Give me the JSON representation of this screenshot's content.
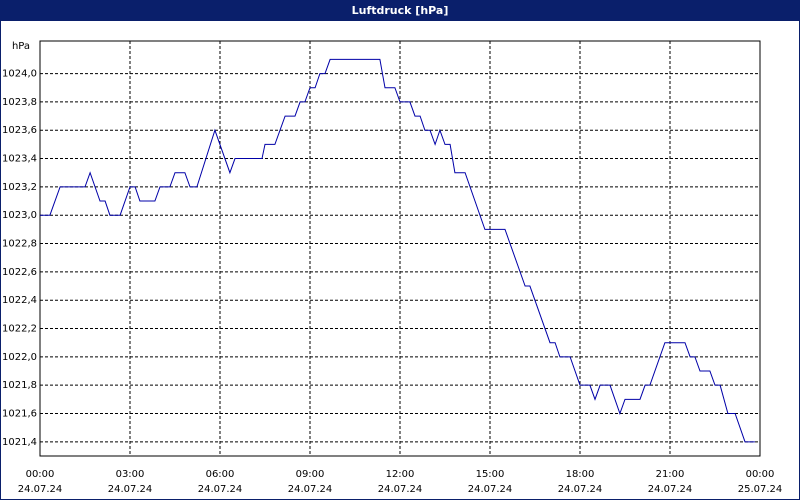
{
  "chart_data": {
    "type": "line",
    "title": "Luftdruck [hPa]",
    "y_unit": "hPa",
    "x": [
      0,
      0.33,
      0.67,
      1.5,
      1.67,
      2,
      2.17,
      2.33,
      2.67,
      3,
      3.17,
      3.33,
      3.83,
      4,
      4.33,
      4.5,
      4.83,
      5,
      5.23,
      5.83,
      6.33,
      6.5,
      7.4,
      7.5,
      7.83,
      8.17,
      8.5,
      8.67,
      8.83,
      9,
      9.17,
      9.33,
      9.5,
      9.67,
      11.33,
      11.5,
      11.83,
      12,
      12.33,
      12.5,
      12.67,
      12.83,
      13,
      13.17,
      13.33,
      13.5,
      13.67,
      13.83,
      14.17,
      14.83,
      15.5,
      16.17,
      16.33,
      17,
      17.17,
      17.33,
      17.67,
      18,
      18.33,
      18.5,
      18.67,
      19,
      19.33,
      19.5,
      20,
      20.17,
      20.33,
      20.83,
      21.5,
      21.67,
      21.83,
      22,
      22.33,
      22.5,
      22.67,
      22.93,
      23.17,
      23.5,
      23.83
    ],
    "series": [
      {
        "name": "Luftdruck",
        "color": "#0000a8",
        "values": [
          1023.0,
          1023.0,
          1023.2,
          1023.2,
          1023.3,
          1023.1,
          1023.1,
          1023.0,
          1023.0,
          1023.2,
          1023.2,
          1023.1,
          1023.1,
          1023.2,
          1023.2,
          1023.3,
          1023.3,
          1023.2,
          1023.2,
          1023.6,
          1023.3,
          1023.4,
          1023.4,
          1023.5,
          1023.5,
          1023.7,
          1023.7,
          1023.8,
          1023.8,
          1023.9,
          1023.9,
          1024.0,
          1024.0,
          1024.1,
          1024.1,
          1023.9,
          1023.9,
          1023.8,
          1023.8,
          1023.7,
          1023.7,
          1023.6,
          1023.6,
          1023.5,
          1023.6,
          1023.5,
          1023.5,
          1023.3,
          1023.3,
          1022.9,
          1022.9,
          1022.5,
          1022.5,
          1022.1,
          1022.1,
          1022.0,
          1022.0,
          1021.8,
          1021.8,
          1021.7,
          1021.8,
          1021.8,
          1021.6,
          1021.7,
          1021.7,
          1021.8,
          1021.8,
          1022.1,
          1022.1,
          1022.0,
          1022.0,
          1021.9,
          1021.9,
          1021.8,
          1021.8,
          1021.6,
          1021.6,
          1021.4,
          1021.4
        ]
      }
    ],
    "xlim": [
      0,
      24
    ],
    "ylim": [
      1021.3,
      1024.23
    ],
    "xticks": [
      {
        "value": 0,
        "label": "00:00"
      },
      {
        "value": 3,
        "label": "03:00"
      },
      {
        "value": 6,
        "label": "06:00"
      },
      {
        "value": 9,
        "label": "09:00"
      },
      {
        "value": 12,
        "label": "12:00"
      },
      {
        "value": 15,
        "label": "15:00"
      },
      {
        "value": 18,
        "label": "18:00"
      },
      {
        "value": 21,
        "label": "21:00"
      },
      {
        "value": 24,
        "label": "00:00"
      }
    ],
    "xtick_dates": [
      "24.07.24",
      "24.07.24",
      "24.07.24",
      "24.07.24",
      "24.07.24",
      "24.07.24",
      "24.07.24",
      "24.07.24",
      "25.07.24"
    ],
    "yticks": [
      {
        "value": 1021.4,
        "label": "1021,4"
      },
      {
        "value": 1021.6,
        "label": "1021,6"
      },
      {
        "value": 1021.8,
        "label": "1021,8"
      },
      {
        "value": 1022.0,
        "label": "1022,0"
      },
      {
        "value": 1022.2,
        "label": "1022,2"
      },
      {
        "value": 1022.4,
        "label": "1022,4"
      },
      {
        "value": 1022.6,
        "label": "1022,6"
      },
      {
        "value": 1022.8,
        "label": "1022,8"
      },
      {
        "value": 1023.0,
        "label": "1023,0"
      },
      {
        "value": 1023.2,
        "label": "1023,2"
      },
      {
        "value": 1023.4,
        "label": "1023,4"
      },
      {
        "value": 1023.6,
        "label": "1023,6"
      },
      {
        "value": 1023.8,
        "label": "1023,8"
      },
      {
        "value": 1024.0,
        "label": "1024,0"
      }
    ],
    "grid": true
  }
}
